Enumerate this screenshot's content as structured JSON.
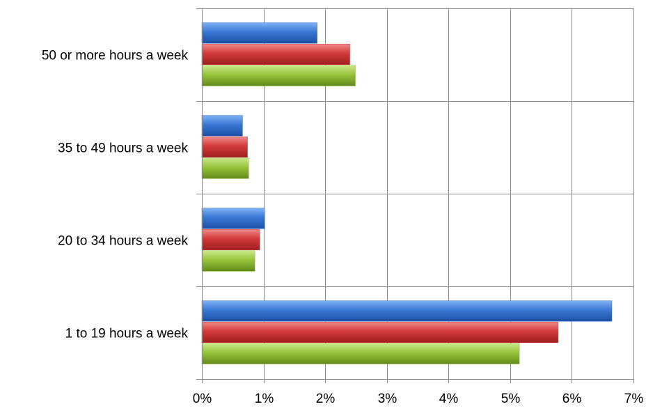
{
  "chart_data": {
    "type": "bar",
    "orientation": "horizontal",
    "title": "",
    "xlabel": "",
    "ylabel": "",
    "categories": [
      "50 or more hours a week",
      "35 to 49 hours a week",
      "20 to 34 hours a week",
      "1 to 19 hours a week"
    ],
    "series": [
      {
        "color": "#3a78d6",
        "values": [
          1.87,
          0.66,
          1.02,
          6.65
        ]
      },
      {
        "color": "#d43a3a",
        "values": [
          2.4,
          0.74,
          0.94,
          5.78
        ]
      },
      {
        "color": "#96c43a",
        "values": [
          2.49,
          0.76,
          0.86,
          5.15
        ]
      }
    ],
    "xlim": [
      0,
      7
    ],
    "xticks": [
      "0%",
      "1%",
      "2%",
      "3%",
      "4%",
      "5%",
      "6%",
      "7%"
    ],
    "grid": true,
    "legend": "none"
  }
}
